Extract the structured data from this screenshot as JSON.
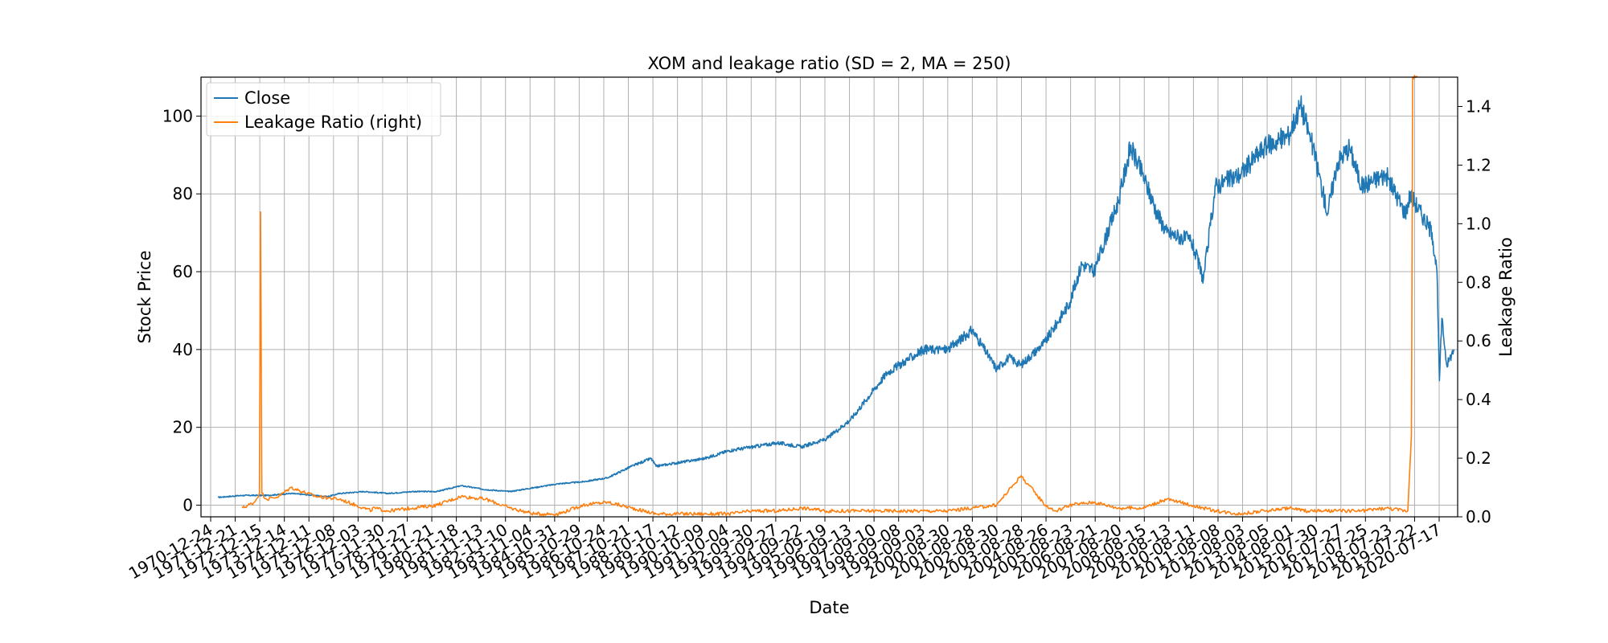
{
  "chart_data": {
    "type": "line",
    "title": "XOM and leakage ratio (SD = 2, MA = 250)",
    "xlabel": "Date",
    "ylabel": "Stock Price",
    "ylabel_right": "Leakage Ratio",
    "grid": true,
    "legend_position": "top-left",
    "ylim": [
      -3,
      110
    ],
    "ylim_right": [
      0,
      1.5
    ],
    "yticks": [
      "0",
      "20",
      "40",
      "60",
      "80",
      "100"
    ],
    "yticks_right": [
      "0.0",
      "0.2",
      "0.4",
      "0.6",
      "0.8",
      "1.0",
      "1.2",
      "1.4"
    ],
    "xticks": [
      "1970-12-24",
      "1971-12-21",
      "1972-12-15",
      "1973-12-14",
      "1974-12-11",
      "1975-12-08",
      "1976-12-03",
      "1977-11-30",
      "1978-11-27",
      "1979-11-21",
      "1980-11-18",
      "1981-11-13",
      "1982-11-10",
      "1983-11-04",
      "1984-10-31",
      "1985-10-29",
      "1986-10-24",
      "1987-10-21",
      "1988-10-17",
      "1989-10-12",
      "1990-10-09",
      "1991-10-04",
      "1992-09-30",
      "1993-09-27",
      "1994-09-22",
      "1995-09-19",
      "1996-09-13",
      "1997-09-10",
      "1998-09-08",
      "1999-09-03",
      "2000-08-30",
      "2001-08-28",
      "2002-08-30",
      "2003-08-28",
      "2004-08-26",
      "2005-08-23",
      "2006-08-21",
      "2007-08-20",
      "2008-08-15",
      "2009-08-13",
      "2010-08-11",
      "2011-08-08",
      "2012-08-03",
      "2013-08-05",
      "2014-08-01",
      "2015-07-30",
      "2016-07-27",
      "2017-07-25",
      "2018-07-23",
      "2019-07-22",
      "2020-07-17"
    ],
    "series": [
      {
        "name": "Close",
        "axis": "left",
        "color": "#1f77b4",
        "x": [
          1970.0,
          1971.0,
          1972.0,
          1973.0,
          1974.0,
          1974.5,
          1975.0,
          1976.0,
          1977.0,
          1978.0,
          1979.0,
          1980.0,
          1981.0,
          1982.0,
          1983.0,
          1984.0,
          1985.0,
          1986.0,
          1987.0,
          1987.8,
          1988.0,
          1989.0,
          1990.0,
          1991.0,
          1992.0,
          1993.0,
          1994.0,
          1995.0,
          1996.0,
          1997.0,
          1997.5,
          1998.0,
          1999.0,
          2000.0,
          2001.0,
          2002.0,
          2002.5,
          2003.0,
          2004.0,
          2005.0,
          2005.5,
          2006.0,
          2007.0,
          2007.5,
          2008.0,
          2008.6,
          2009.0,
          2010.0,
          2010.5,
          2011.0,
          2012.0,
          2013.0,
          2014.0,
          2014.5,
          2015.0,
          2015.6,
          2016.0,
          2016.5,
          2017.0,
          2018.0,
          2018.8,
          2019.0,
          2019.9,
          2020.1,
          2020.2,
          2020.3,
          2020.5,
          2020.8
        ],
        "values": [
          2,
          2.5,
          2.5,
          3,
          2.5,
          2.2,
          3,
          3.5,
          3,
          3.5,
          3.5,
          5,
          4,
          3.5,
          4.5,
          5.5,
          6,
          7,
          10,
          12,
          10,
          11,
          12,
          14,
          15,
          16,
          15,
          17,
          22,
          30,
          34,
          36,
          40,
          40,
          45,
          35,
          38,
          36,
          42,
          52,
          62,
          60,
          78,
          92,
          85,
          75,
          70,
          68,
          58,
          82,
          85,
          92,
          95,
          103,
          92,
          75,
          88,
          92,
          82,
          85,
          75,
          80,
          70,
          60,
          32,
          48,
          36,
          40
        ]
      },
      {
        "name": "Leakage Ratio (right)",
        "axis": "right",
        "color": "#ff7f0e",
        "x": [
          1971.0,
          1971.5,
          1971.7,
          1971.75,
          1971.8,
          1972.0,
          1972.5,
          1973.0,
          1974.0,
          1975.0,
          1976.0,
          1976.3,
          1976.35,
          1977.0,
          1978.0,
          1979.0,
          1980.0,
          1981.0,
          1982.0,
          1983.0,
          1984.0,
          1985.0,
          1986.0,
          1987.0,
          1988.0,
          1989.0,
          1990.0,
          1991.0,
          1992.0,
          1993.0,
          1994.0,
          1995.0,
          1996.0,
          1997.0,
          1998.0,
          1999.0,
          2000.0,
          2001.0,
          2002.0,
          2003.0,
          2004.0,
          2004.4,
          2004.45,
          2005.0,
          2006.0,
          2007.0,
          2008.0,
          2009.0,
          2010.0,
          2010.5,
          2011.0,
          2012.0,
          2013.0,
          2014.0,
          2014.8,
          2015.0,
          2016.0,
          2017.0,
          2018.0,
          2018.9,
          2019.05,
          2019.1,
          2019.3
        ],
        "values": [
          0.03,
          0.05,
          0.08,
          1.04,
          0.08,
          0.06,
          0.07,
          0.1,
          0.07,
          0.06,
          0.03,
          0.02,
          0.03,
          0.02,
          0.03,
          0.04,
          0.07,
          0.06,
          0.03,
          0.01,
          0.01,
          0.04,
          0.05,
          0.03,
          0.01,
          0.01,
          0.01,
          0.01,
          0.02,
          0.02,
          0.03,
          0.02,
          0.02,
          0.02,
          0.02,
          0.02,
          0.02,
          0.03,
          0.04,
          0.14,
          0.04,
          0.02,
          0.02,
          0.04,
          0.05,
          0.03,
          0.03,
          0.06,
          0.04,
          0.03,
          0.02,
          0.01,
          0.02,
          0.03,
          0.02,
          0.02,
          0.02,
          0.02,
          0.03,
          0.02,
          0.28,
          1.5,
          1.5
        ]
      }
    ]
  }
}
